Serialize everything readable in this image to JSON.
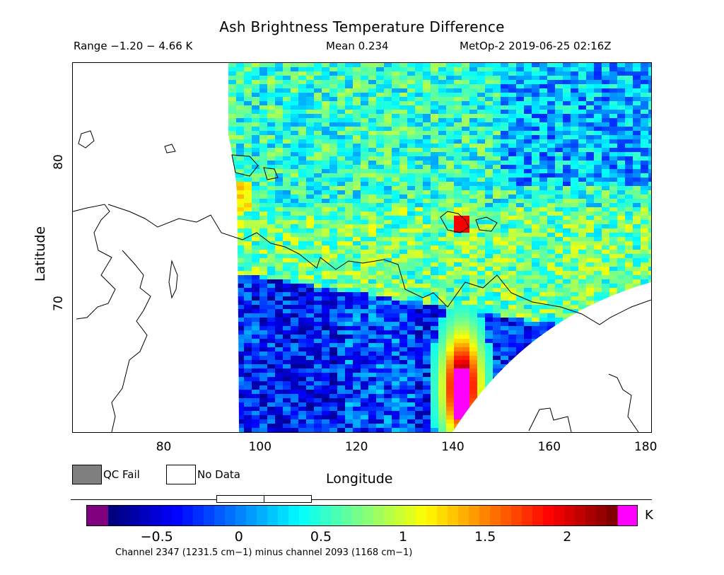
{
  "title": "Ash Brightness Temperature Difference",
  "range_text": "Range −1.20 − 4.66 K",
  "mean_text": "Mean 0.234",
  "satellite_text": "MetOp-2 2019-06-25 02:16Z",
  "map": {
    "lon_range": [
      61,
      181
    ],
    "lat_range": [
      61,
      87
    ],
    "x_ticks": [
      "80",
      "100",
      "120",
      "140",
      "160",
      "180"
    ],
    "x_tick_values": [
      80,
      100,
      120,
      140,
      160,
      180
    ],
    "y_ticks": [
      "80",
      "70"
    ],
    "y_tick_values": [
      80,
      70
    ],
    "xlabel": "Longitude",
    "ylabel": "Latitude"
  },
  "legend": {
    "qc_fail_label": "QC Fail",
    "no_data_label": "No Data",
    "qc_fail_color": "#7f7f7f",
    "no_data_color": "#ffffff"
  },
  "colorbar": {
    "ticks": [
      "−0.5",
      "0",
      "0.5",
      "1",
      "1.5",
      "2"
    ],
    "tick_values": [
      -0.5,
      0,
      0.5,
      1,
      1.5,
      2
    ],
    "value_range": [
      -0.8,
      2.3
    ],
    "unit": "K",
    "underflow_color": "#800080",
    "overflow_color": "#ff00ff"
  },
  "channel_text": "Channel 2347 (1231.5 cm−1) minus channel 2093 (1168 cm−1)"
}
